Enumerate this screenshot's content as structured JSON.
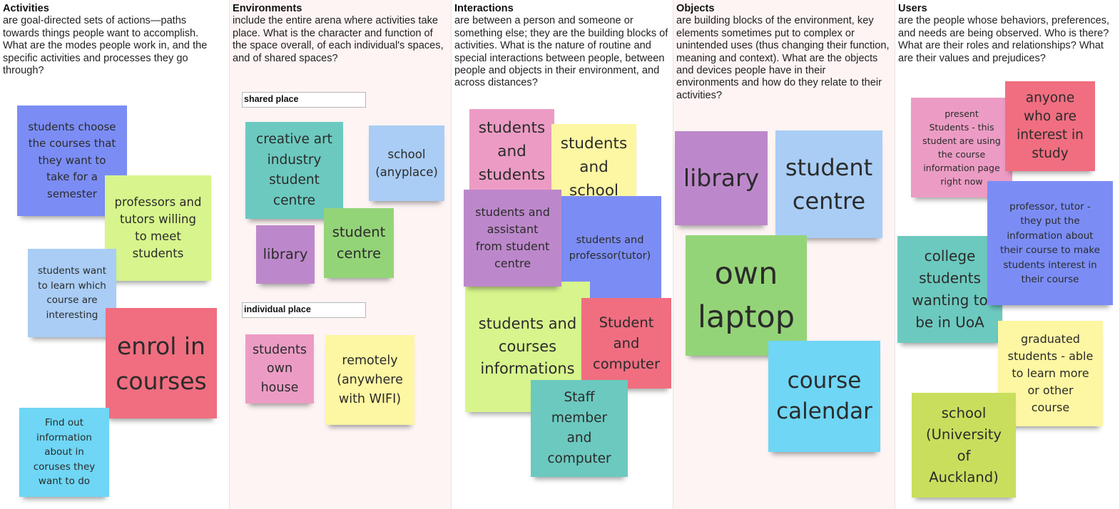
{
  "colors": {
    "blue": "#7b8df5",
    "lime": "#d7f58c",
    "light_blue": "#a9cdf5",
    "red": "#f06e80",
    "cyan": "#6fd6f5",
    "teal": "#6cc9bf",
    "purple": "#bd88cb",
    "green": "#94d478",
    "pink": "#ec9cc4",
    "yellow": "#fdf6a2",
    "olive": "#c9de5d",
    "column_tint": "#fdf4f3"
  },
  "columns": [
    {
      "title": "Activities",
      "description": "are goal-directed sets of actions—paths towards things people want to accomplish. What are the modes people work in, and the specific activities and processes they go through?"
    },
    {
      "title": "Environments",
      "description": "include the entire arena where activities take place. What is the character and function of the space overall, of each individual's spaces, and of shared spaces?"
    },
    {
      "title": "Interactions",
      "description": "are between a person and someone or something else; they are the building blocks of activities. What is the nature of routine and special interactions between people, between people and objects in their environment, and across distances?"
    },
    {
      "title": "Objects",
      "description": "are building blocks of the environment, key elements sometimes put to complex or unintended uses (thus changing their function, meaning and context). What are the objects and devices people have in their environments and how do they relate to their activities?"
    },
    {
      "title": "Users",
      "description": "are the people whose behaviors, preferences, and needs are being observed. Who is there? What are their roles and relationships? What are their values and prejudices?"
    }
  ],
  "frames": {
    "shared": "shared place",
    "individual": "individual place"
  },
  "notes": {
    "activities": [
      "students choose\nthe courses that\nthey want to\ntake for a\nsemester",
      "professors and\ntutors willing\nto meet\nstudents",
      "students want\nto learn which\ncourse are\ninteresting",
      "enrol in\ncourses",
      "Find out\ninformation\nabout in\ncoruses they\nwant to do"
    ],
    "environments": [
      "creative art\nindustry\nstudent\ncentre",
      "school\n(anyplace)",
      "library",
      "student\ncentre",
      "students\nown\nhouse",
      "remotely\n(anywhere\nwith WIFI)"
    ],
    "interactions": [
      "students\nand\nstudents",
      "students\nand\nschool",
      "students and\nassistant\nfrom student\ncentre",
      "students and\nprofessor(tutor)",
      "students and\ncourses\ninformations",
      "Student\nand\ncomputer",
      "Staff\nmember\nand\ncomputer"
    ],
    "objects": [
      "library",
      "student\ncentre",
      "own\nlaptop",
      "course\ncalendar"
    ],
    "users": [
      "present\nStudents - this\nstudent are using\nthe course\ninformation page\nright now",
      "anyone\nwho are\ninterest in\nstudy",
      "professor, tutor -\nthey put the\ninformation about\ntheir course to make\nstudents interest in\ntheir course",
      "college\nstudents\nwanting to\nbe in UoA",
      "graduated\nstudents - able\nto learn more\nor other\ncourse",
      "school\n(University\nof\nAuckland)"
    ]
  }
}
